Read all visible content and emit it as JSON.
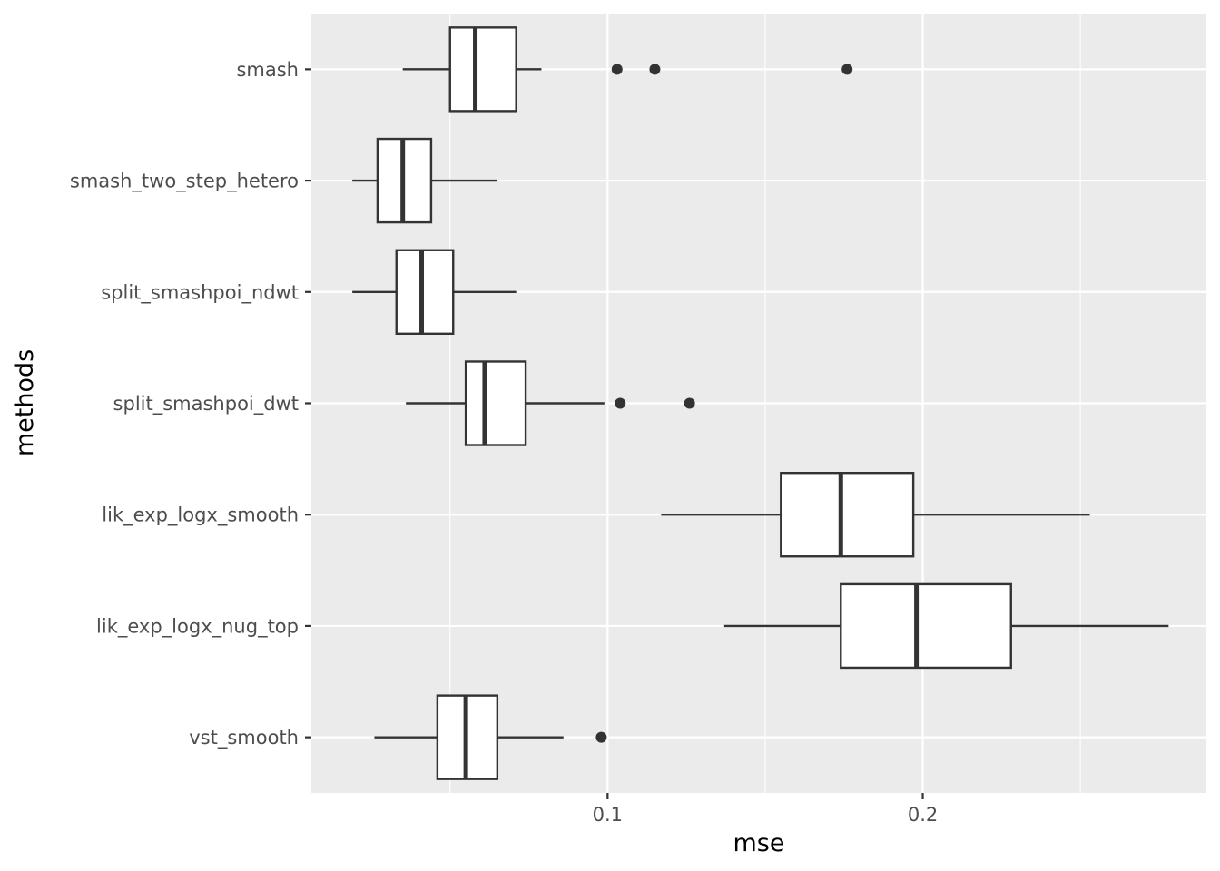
{
  "chart_data": {
    "type": "boxplot",
    "orientation": "horizontal",
    "xlabel": "mse",
    "ylabel": "methods",
    "xlim": [
      0.006,
      0.29
    ],
    "x_ticks": [
      {
        "value": 0.1,
        "label": "0.1"
      },
      {
        "value": 0.2,
        "label": "0.2"
      }
    ],
    "x_minor_ticks": [
      0.05,
      0.15,
      0.25
    ],
    "grid": true,
    "categories": [
      "smash",
      "smash_two_step_hetero",
      "split_smashpoi_ndwt",
      "split_smashpoi_dwt",
      "lik_exp_logx_smooth",
      "lik_exp_logx_nug_top",
      "vst_smooth"
    ],
    "series": [
      {
        "name": "smash",
        "whisker_low": 0.035,
        "q1": 0.05,
        "median": 0.058,
        "q3": 0.071,
        "whisker_high": 0.079,
        "outliers": [
          0.103,
          0.115,
          0.176
        ]
      },
      {
        "name": "smash_two_step_hetero",
        "whisker_low": 0.019,
        "q1": 0.027,
        "median": 0.035,
        "q3": 0.044,
        "whisker_high": 0.065,
        "outliers": []
      },
      {
        "name": "split_smashpoi_ndwt",
        "whisker_low": 0.019,
        "q1": 0.033,
        "median": 0.041,
        "q3": 0.051,
        "whisker_high": 0.071,
        "outliers": []
      },
      {
        "name": "split_smashpoi_dwt",
        "whisker_low": 0.036,
        "q1": 0.055,
        "median": 0.061,
        "q3": 0.074,
        "whisker_high": 0.099,
        "outliers": [
          0.104,
          0.126
        ]
      },
      {
        "name": "lik_exp_logx_smooth",
        "whisker_low": 0.117,
        "q1": 0.155,
        "median": 0.174,
        "q3": 0.197,
        "whisker_high": 0.253,
        "outliers": []
      },
      {
        "name": "lik_exp_logx_nug_top",
        "whisker_low": 0.137,
        "q1": 0.174,
        "median": 0.198,
        "q3": 0.228,
        "whisker_high": 0.278,
        "outliers": []
      },
      {
        "name": "vst_smooth",
        "whisker_low": 0.026,
        "q1": 0.046,
        "median": 0.055,
        "q3": 0.065,
        "whisker_high": 0.086,
        "outliers": [
          0.098
        ]
      }
    ]
  }
}
